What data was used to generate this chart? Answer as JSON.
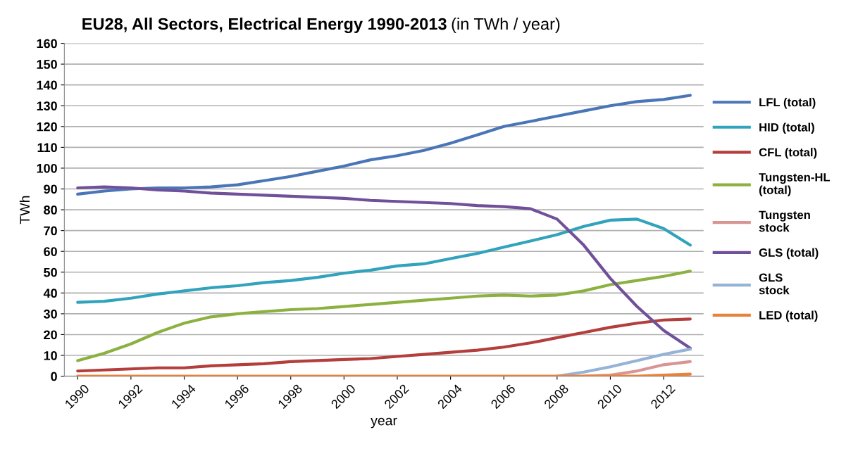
{
  "chart_data": {
    "type": "line",
    "title": "EU28, All Sectors, Electrical Energy 1990-2013",
    "subtitle": "(in TWh / year)",
    "xlabel": "year",
    "ylabel": "TWh",
    "x": [
      1990,
      1991,
      1992,
      1993,
      1994,
      1995,
      1996,
      1997,
      1998,
      1999,
      2000,
      2001,
      2002,
      2003,
      2004,
      2005,
      2006,
      2007,
      2008,
      2009,
      2010,
      2011,
      2012,
      2013
    ],
    "xlim": [
      1989.5,
      2013.5
    ],
    "xticks": [
      1990,
      1992,
      1994,
      1996,
      1998,
      2000,
      2002,
      2004,
      2006,
      2008,
      2010,
      2012
    ],
    "ylim": [
      0,
      160
    ],
    "yticks": [
      0,
      10,
      20,
      30,
      40,
      50,
      60,
      70,
      80,
      90,
      100,
      110,
      120,
      130,
      140,
      150,
      160
    ],
    "grid": "y",
    "legend": "right",
    "marker": "none",
    "line_style": "solid",
    "series": [
      {
        "name": "LFL (total)",
        "color": "#4a76b8",
        "values": [
          87.5,
          89,
          90,
          90.5,
          90.5,
          91,
          92,
          94,
          96,
          98.5,
          101,
          104,
          106,
          108.5,
          112,
          116,
          120,
          122.5,
          125,
          127.5,
          130,
          132,
          133,
          135
        ]
      },
      {
        "name": "HID (total)",
        "color": "#31a3bc",
        "values": [
          35.5,
          36,
          37.5,
          39.5,
          41,
          42.5,
          43.5,
          45,
          46,
          47.5,
          49.5,
          51,
          53,
          54,
          56.5,
          59,
          62,
          65,
          68,
          72,
          75,
          75.5,
          71,
          63
        ]
      },
      {
        "name": "CFL (total)",
        "color": "#b33e3b",
        "values": [
          2.5,
          3,
          3.5,
          4,
          4,
          5,
          5.5,
          6,
          7,
          7.5,
          8,
          8.5,
          9.5,
          10.5,
          11.5,
          12.5,
          14,
          16,
          18.5,
          21,
          23.5,
          25.5,
          27,
          27.5
        ]
      },
      {
        "name": "Tungsten-HL (total)",
        "color": "#8cb140",
        "values": [
          7.5,
          11,
          15.5,
          21,
          25.5,
          28.5,
          30,
          31,
          32,
          32.5,
          33.5,
          34.5,
          35.5,
          36.5,
          37.5,
          38.5,
          39,
          38.5,
          39,
          41,
          44,
          46,
          48,
          50.5
        ]
      },
      {
        "name": "Tungsten stock",
        "color": "#d99594",
        "values": [
          null,
          null,
          null,
          null,
          null,
          null,
          null,
          null,
          null,
          null,
          null,
          null,
          null,
          null,
          null,
          null,
          null,
          null,
          null,
          0,
          0.5,
          2.5,
          5.5,
          7
        ]
      },
      {
        "name": "GLS (total)",
        "color": "#71509a",
        "values": [
          90.5,
          91,
          90.5,
          89.5,
          89,
          88,
          87.5,
          87,
          86.5,
          86,
          85.5,
          84.5,
          84,
          83.5,
          83,
          82,
          81.5,
          80.5,
          75.5,
          63,
          47,
          33.5,
          22,
          13.5
        ]
      },
      {
        "name": "GLS stock",
        "color": "#95b3d7",
        "values": [
          null,
          null,
          null,
          null,
          null,
          null,
          null,
          null,
          null,
          null,
          null,
          null,
          null,
          null,
          null,
          null,
          null,
          null,
          0,
          2,
          4.5,
          7.5,
          10.5,
          13
        ]
      },
      {
        "name": "LED (total)",
        "color": "#e8823a",
        "values": [
          0,
          0,
          0,
          0,
          0,
          0,
          0,
          0,
          0,
          0,
          0,
          0,
          0,
          0,
          0,
          0,
          0,
          0,
          0,
          0,
          0,
          0,
          0.5,
          1
        ]
      }
    ]
  }
}
